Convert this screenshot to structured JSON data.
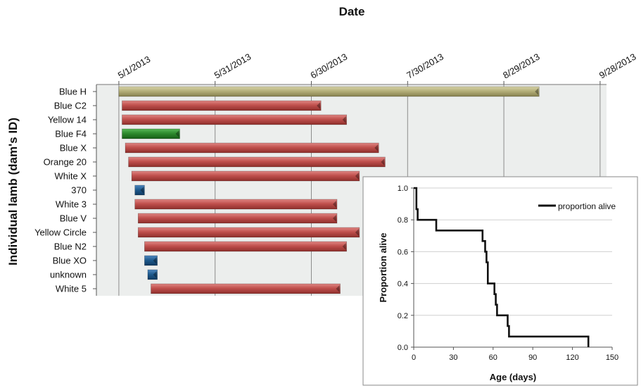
{
  "chart_data": [
    {
      "type": "bar",
      "subtype": "gantt",
      "title": "Date",
      "ylabel": "Individual lamb  (dam's ID)",
      "x_ticks": [
        "5/1/2013",
        "5/31/2013",
        "6/30/2013",
        "7/30/2013",
        "8/29/2013",
        "9/28/2013"
      ],
      "xlim": [
        "2013-04-24",
        "2013-09-30"
      ],
      "grid": "vertical",
      "colors": {
        "red": "#c0504d",
        "green": "#2e8b2e",
        "blue": "#1f5b8f",
        "khaki": "#b5b07a",
        "plot_bg": "#eceeed"
      },
      "bars": [
        {
          "name": "Blue H",
          "start": "2013-05-01",
          "end": "2013-09-09",
          "color": "khaki"
        },
        {
          "name": "Blue C2",
          "start": "2013-05-02",
          "end": "2013-07-03",
          "color": "red"
        },
        {
          "name": "Yellow 14",
          "start": "2013-05-02",
          "end": "2013-07-11",
          "color": "red"
        },
        {
          "name": "Blue F4",
          "start": "2013-05-02",
          "end": "2013-05-20",
          "color": "green"
        },
        {
          "name": "Blue X",
          "start": "2013-05-03",
          "end": "2013-07-21",
          "color": "red"
        },
        {
          "name": "Orange 20",
          "start": "2013-05-04",
          "end": "2013-07-23",
          "color": "red"
        },
        {
          "name": "White X",
          "start": "2013-05-05",
          "end": "2013-07-15",
          "color": "red"
        },
        {
          "name": "370",
          "start": "2013-05-06",
          "end": "2013-05-09",
          "color": "blue"
        },
        {
          "name": "White 3",
          "start": "2013-05-06",
          "end": "2013-07-08",
          "color": "red"
        },
        {
          "name": "Blue V",
          "start": "2013-05-07",
          "end": "2013-07-08",
          "color": "red"
        },
        {
          "name": "Yellow Circle",
          "start": "2013-05-07",
          "end": "2013-07-15",
          "color": "red"
        },
        {
          "name": "Blue N2",
          "start": "2013-05-09",
          "end": "2013-07-11",
          "color": "red"
        },
        {
          "name": "Blue XO",
          "start": "2013-05-09",
          "end": "2013-05-13",
          "color": "blue"
        },
        {
          "name": "unknown",
          "start": "2013-05-10",
          "end": "2013-05-13",
          "color": "blue"
        },
        {
          "name": "White 5",
          "start": "2013-05-11",
          "end": "2013-07-09",
          "color": "red"
        }
      ]
    },
    {
      "type": "line",
      "subtype": "step",
      "xlabel": "Age (days)",
      "ylabel": "Proportion alive",
      "xlim": [
        0,
        150
      ],
      "ylim": [
        0,
        1
      ],
      "x_ticks": [
        0,
        30,
        60,
        90,
        120,
        150
      ],
      "y_ticks": [
        "0.0",
        "0.2",
        "0.4",
        "0.6",
        "0.8",
        "1.0"
      ],
      "legend": "top-right",
      "series": [
        {
          "name": "proportion alive",
          "color": "#111111",
          "x": [
            0,
            2,
            2,
            3,
            3,
            17,
            17,
            52,
            52,
            54,
            54,
            55,
            55,
            56,
            56,
            61,
            61,
            62,
            62,
            63,
            63,
            64,
            64,
            71,
            71,
            72,
            72,
            132,
            132
          ],
          "y": [
            1.0,
            1.0,
            0.867,
            0.867,
            0.8,
            0.8,
            0.733,
            0.733,
            0.667,
            0.667,
            0.6,
            0.6,
            0.533,
            0.533,
            0.4,
            0.4,
            0.333,
            0.333,
            0.267,
            0.267,
            0.2,
            0.2,
            0.2,
            0.2,
            0.133,
            0.133,
            0.067,
            0.067,
            0.0
          ]
        }
      ]
    }
  ]
}
